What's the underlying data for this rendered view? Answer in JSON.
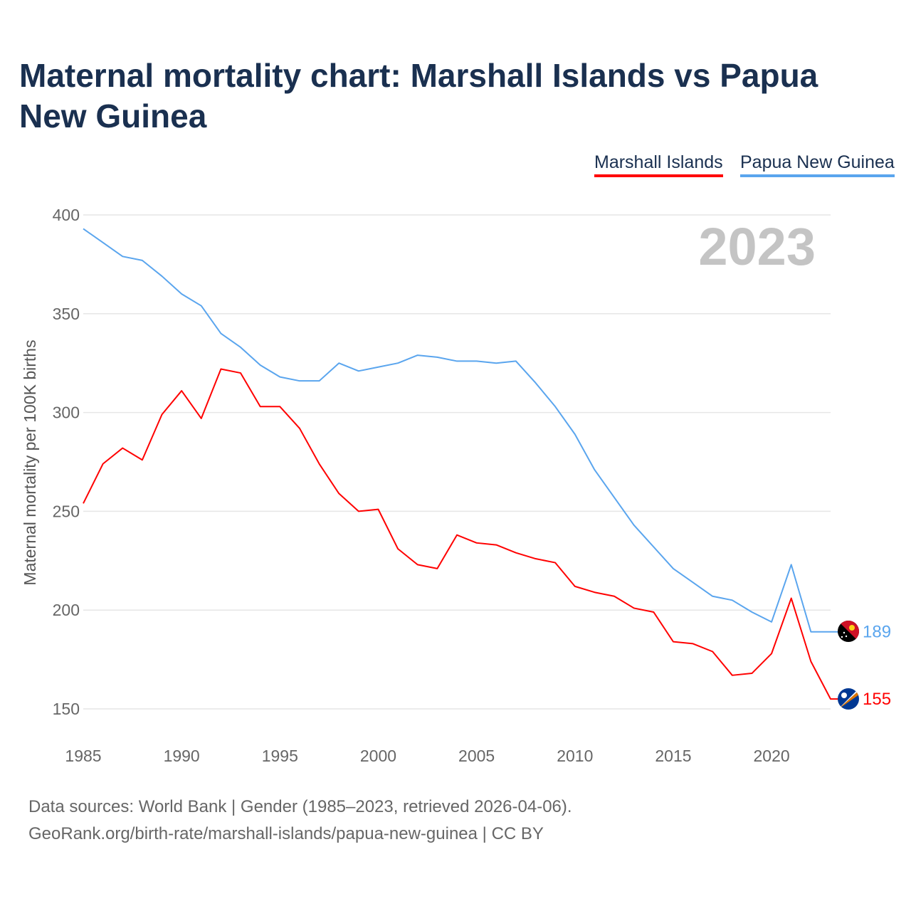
{
  "title": "Maternal mortality chart: Marshall Islands vs Papua New Guinea",
  "footer": {
    "line1": "Data sources: World Bank | Gender (1985–2023, retrieved 2026-04-06).",
    "line2": "GeoRank.org/birth-rate/marshall-islands/papua-new-guinea | CC BY"
  },
  "chart_data": {
    "type": "line",
    "title": "Maternal mortality chart: Marshall Islands vs Papua New Guinea",
    "xlabel": "",
    "ylabel": "Maternal mortality per 100K births",
    "year_label": "2023",
    "xlim": [
      1985,
      2023
    ],
    "ylim": [
      150,
      400
    ],
    "xticks": [
      1985,
      1990,
      1995,
      2000,
      2005,
      2010,
      2015,
      2020
    ],
    "yticks": [
      150,
      200,
      250,
      300,
      350,
      400
    ],
    "grid": true,
    "legend_position": "top-right",
    "x": [
      1985,
      1986,
      1987,
      1988,
      1989,
      1990,
      1991,
      1992,
      1993,
      1994,
      1995,
      1996,
      1997,
      1998,
      1999,
      2000,
      2001,
      2002,
      2003,
      2004,
      2005,
      2006,
      2007,
      2008,
      2009,
      2010,
      2011,
      2012,
      2013,
      2014,
      2015,
      2016,
      2017,
      2018,
      2019,
      2020,
      2021,
      2022,
      2023
    ],
    "series": [
      {
        "name": "Marshall Islands",
        "color": "#ff0000",
        "end_label": "155",
        "values": [
          254,
          274,
          282,
          276,
          299,
          311,
          297,
          322,
          320,
          303,
          303,
          292,
          274,
          259,
          250,
          251,
          231,
          223,
          221,
          238,
          234,
          233,
          229,
          226,
          224,
          212,
          209,
          207,
          201,
          199,
          184,
          183,
          179,
          167,
          168,
          178,
          206,
          174,
          155
        ]
      },
      {
        "name": "Papua New Guinea",
        "color": "#5aa5ee",
        "end_label": "189",
        "values": [
          393,
          386,
          379,
          377,
          369,
          360,
          354,
          340,
          333,
          324,
          318,
          316,
          316,
          325,
          321,
          323,
          325,
          329,
          328,
          326,
          326,
          325,
          326,
          315,
          303,
          289,
          271,
          257,
          243,
          232,
          221,
          214,
          207,
          205,
          199,
          194,
          223,
          189,
          189
        ]
      }
    ]
  }
}
